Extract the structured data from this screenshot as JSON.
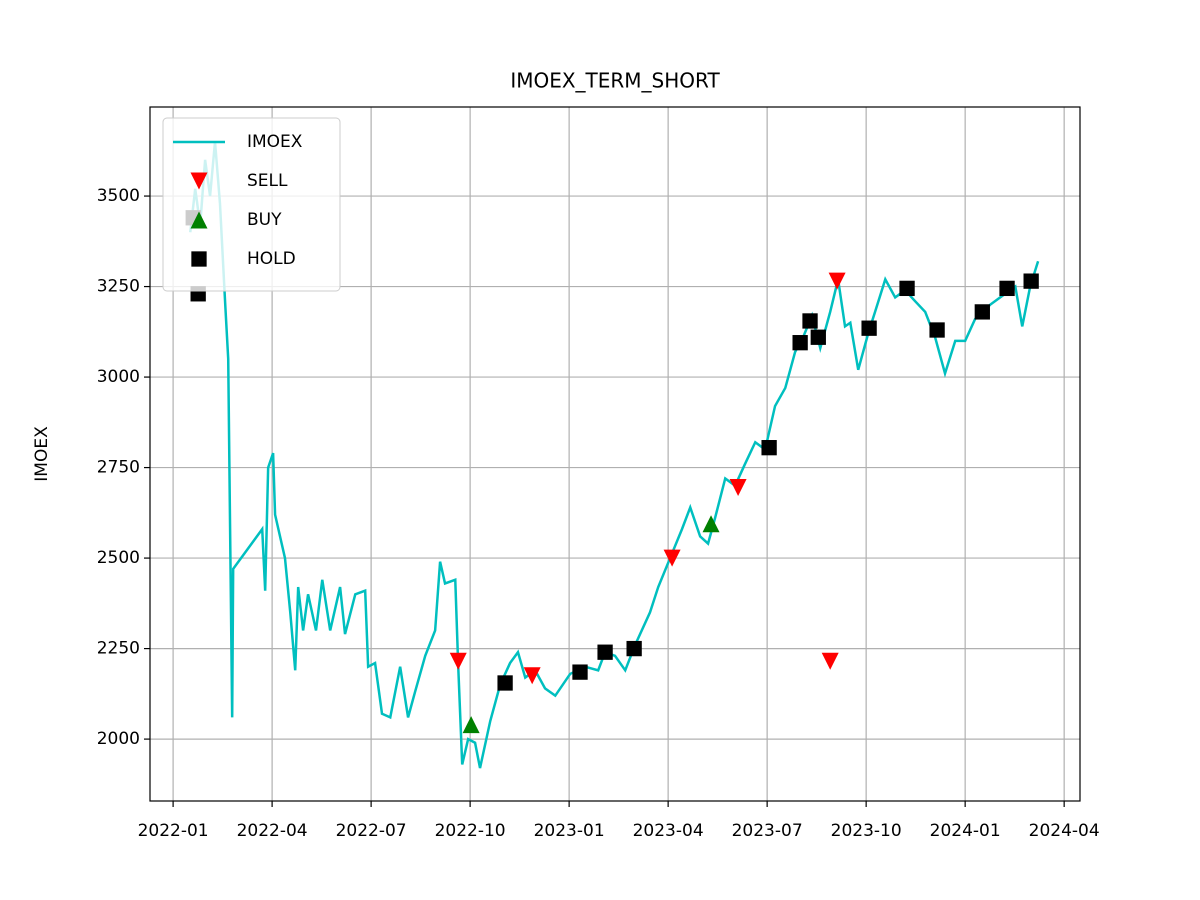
{
  "chart_data": {
    "type": "line",
    "title": "IMOEX_TERM_SHORT",
    "ylabel": "IMOEX",
    "xlim": [
      -0.7,
      27.48
    ],
    "ylim": [
      1829,
      3746
    ],
    "xticks": [
      {
        "value": 0,
        "label": "2022-01"
      },
      {
        "value": 3,
        "label": "2022-04"
      },
      {
        "value": 6,
        "label": "2022-07"
      },
      {
        "value": 9,
        "label": "2022-10"
      },
      {
        "value": 12,
        "label": "2023-01"
      },
      {
        "value": 15,
        "label": "2023-04"
      },
      {
        "value": 18,
        "label": "2023-07"
      },
      {
        "value": 21,
        "label": "2023-10"
      },
      {
        "value": 24,
        "label": "2024-01"
      },
      {
        "value": 27,
        "label": "2024-04"
      }
    ],
    "yticks": [
      2000,
      2250,
      2500,
      2750,
      3000,
      3250,
      3500
    ],
    "grid": true,
    "legend": "upper left",
    "series": [
      {
        "name": "IMOEX",
        "color": "#00bfbf",
        "marker": "line",
        "x": [
          0.52,
          0.67,
          0.82,
          0.97,
          1.12,
          1.27,
          1.42,
          1.58,
          1.67,
          1.79,
          1.82,
          2.7,
          2.79,
          2.88,
          3.03,
          3.09,
          3.39,
          3.55,
          3.7,
          3.79,
          3.94,
          4.09,
          4.33,
          4.52,
          4.76,
          5.06,
          5.21,
          5.52,
          5.82,
          5.91,
          6.12,
          6.33,
          6.58,
          6.88,
          7.12,
          7.33,
          7.64,
          7.94,
          8.09,
          8.24,
          8.55,
          8.64,
          8.76,
          8.94,
          9.15,
          9.3,
          9.61,
          9.91,
          10.21,
          10.45,
          10.67,
          10.97,
          11.27,
          11.58,
          12.03,
          12.48,
          12.88,
          13.09,
          13.39,
          13.7,
          14.0,
          14.45,
          14.7,
          15.06,
          15.42,
          15.67,
          15.97,
          16.21,
          16.42,
          16.73,
          17.03,
          17.33,
          17.64,
          17.94,
          18.24,
          18.55,
          18.85,
          19.09,
          19.36,
          19.61,
          19.91,
          20.15,
          20.36,
          20.52,
          20.76,
          21.06,
          21.27,
          21.58,
          21.88,
          22.18,
          22.48,
          22.79,
          23.09,
          23.39,
          23.7,
          24.0,
          24.3,
          24.76,
          25.21,
          25.52,
          25.73,
          25.97,
          26.21
        ],
        "values": [
          3400,
          3520,
          3420,
          3600,
          3500,
          3650,
          3480,
          3200,
          3050,
          2060,
          2470,
          2580,
          2410,
          2750,
          2790,
          2620,
          2500,
          2350,
          2190,
          2420,
          2300,
          2400,
          2300,
          2440,
          2300,
          2420,
          2290,
          2400,
          2410,
          2200,
          2210,
          2070,
          2060,
          2200,
          2060,
          2130,
          2230,
          2300,
          2490,
          2430,
          2440,
          2200,
          1930,
          2000,
          1990,
          1920,
          2050,
          2150,
          2210,
          2240,
          2170,
          2190,
          2140,
          2120,
          2180,
          2200,
          2190,
          2240,
          2230,
          2190,
          2260,
          2350,
          2420,
          2500,
          2580,
          2640,
          2560,
          2540,
          2610,
          2720,
          2700,
          2760,
          2820,
          2800,
          2920,
          2970,
          3070,
          3110,
          3170,
          3080,
          3180,
          3270,
          3140,
          3150,
          3020,
          3120,
          3180,
          3270,
          3220,
          3240,
          3210,
          3180,
          3110,
          3010,
          3100,
          3100,
          3160,
          3200,
          3230,
          3250,
          3140,
          3250,
          3320
        ]
      },
      {
        "name": "SELL",
        "color": "#ff0000",
        "marker": "triangle-down",
        "x": [
          8.64,
          10.88,
          15.12,
          17.12,
          19.91,
          20.12
        ],
        "values": [
          2215,
          2175,
          2500,
          2695,
          2215,
          3265
        ]
      },
      {
        "name": "BUY",
        "color": "#008000",
        "marker": "triangle-up",
        "x": [
          9.03,
          16.3
        ],
        "values": [
          2040,
          2595
        ]
      },
      {
        "name": "HOLD",
        "color": "#000000",
        "marker": "square",
        "x": [
          0.61,
          0.76,
          10.06,
          12.33,
          13.09,
          13.97,
          18.06,
          19.0,
          19.3,
          19.55,
          21.09,
          22.24,
          23.15,
          24.52,
          25.27,
          26.0
        ],
        "values": [
          3440,
          3230,
          2155,
          2185,
          2240,
          2250,
          2805,
          3095,
          3155,
          3110,
          3135,
          3245,
          3130,
          3180,
          3245,
          3265
        ]
      }
    ]
  }
}
